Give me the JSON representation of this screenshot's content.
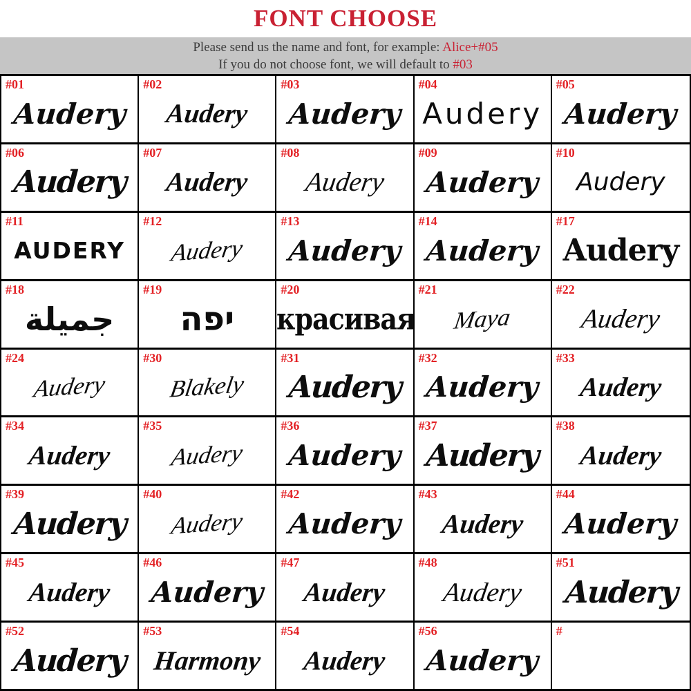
{
  "header": {
    "title": "FONT CHOOSE",
    "line1": {
      "text": "Please send us the name and font, for example: ",
      "highlight": "Alice+#05"
    },
    "line2": {
      "text": "If you do not choose  font, we will default to ",
      "highlight": "#03"
    }
  },
  "colors": {
    "title_red": "#c92133",
    "label_red": "#e32226",
    "bar_bg": "#c5c5c5",
    "bar_text": "#3b3b3b",
    "border_black": "#000000",
    "cell_bg": "#ffffff"
  },
  "grid": {
    "columns": 5,
    "cells": [
      {
        "id": "#01",
        "text": "Audery",
        "style": "script-heavy"
      },
      {
        "id": "#02",
        "text": "Audery",
        "style": "script-medium"
      },
      {
        "id": "#03",
        "text": "Audery",
        "style": "script-heavy"
      },
      {
        "id": "#04",
        "text": "Audery",
        "style": "sans-clean"
      },
      {
        "id": "#05",
        "text": "Audery",
        "style": "script-heavy"
      },
      {
        "id": "#06",
        "text": "Audery",
        "style": "script-black"
      },
      {
        "id": "#07",
        "text": "Audery",
        "style": "script-medium"
      },
      {
        "id": "#08",
        "text": "Audery",
        "style": "script-light"
      },
      {
        "id": "#09",
        "text": "Audery",
        "style": "script-heavy"
      },
      {
        "id": "#10",
        "text": "Audery",
        "style": "hand"
      },
      {
        "id": "#11",
        "text": "Audery",
        "style": "caps"
      },
      {
        "id": "#12",
        "text": "Audery",
        "style": "signature"
      },
      {
        "id": "#13",
        "text": "Audery",
        "style": "script-heavy"
      },
      {
        "id": "#14",
        "text": "Audery",
        "style": "script-heavy"
      },
      {
        "id": "#17",
        "text": "Audery",
        "style": "blackletter"
      },
      {
        "id": "#18",
        "text": "جميلة",
        "style": "arabic"
      },
      {
        "id": "#19",
        "text": "יפה",
        "style": "hebrew"
      },
      {
        "id": "#20",
        "text": "красивая",
        "style": "cyrillic"
      },
      {
        "id": "#21",
        "text": "Maya",
        "style": "signature"
      },
      {
        "id": "#22",
        "text": "Audery",
        "style": "script-light"
      },
      {
        "id": "#24",
        "text": "Audery",
        "style": "signature"
      },
      {
        "id": "#30",
        "text": "Blakely",
        "style": "signature"
      },
      {
        "id": "#31",
        "text": "Audery",
        "style": "script-black"
      },
      {
        "id": "#32",
        "text": "Audery",
        "style": "script-heavy"
      },
      {
        "id": "#33",
        "text": "Audery",
        "style": "script-medium"
      },
      {
        "id": "#34",
        "text": "Audery",
        "style": "script-medium"
      },
      {
        "id": "#35",
        "text": "Audery",
        "style": "signature"
      },
      {
        "id": "#36",
        "text": "Audery",
        "style": "script-heavy"
      },
      {
        "id": "#37",
        "text": "Audery",
        "style": "script-black"
      },
      {
        "id": "#38",
        "text": "Audery",
        "style": "script-medium"
      },
      {
        "id": "#39",
        "text": "Audery",
        "style": "script-black"
      },
      {
        "id": "#40",
        "text": "Audery",
        "style": "signature"
      },
      {
        "id": "#42",
        "text": "Audery",
        "style": "script-heavy"
      },
      {
        "id": "#43",
        "text": "Audery",
        "style": "script-medium"
      },
      {
        "id": "#44",
        "text": "Audery",
        "style": "script-heavy"
      },
      {
        "id": "#45",
        "text": "Audery",
        "style": "script-medium"
      },
      {
        "id": "#46",
        "text": "Audery",
        "style": "script-heavy"
      },
      {
        "id": "#47",
        "text": "Audery",
        "style": "script-medium"
      },
      {
        "id": "#48",
        "text": "Audery",
        "style": "script-light"
      },
      {
        "id": "#51",
        "text": "Audery",
        "style": "script-black"
      },
      {
        "id": "#52",
        "text": "Audery",
        "style": "script-black"
      },
      {
        "id": "#53",
        "text": "Harmony",
        "style": "script-medium"
      },
      {
        "id": "#54",
        "text": "Audery",
        "style": "script-medium"
      },
      {
        "id": "#56",
        "text": "Audery",
        "style": "script-heavy"
      },
      {
        "id": "#",
        "text": "",
        "style": "empty"
      }
    ]
  }
}
